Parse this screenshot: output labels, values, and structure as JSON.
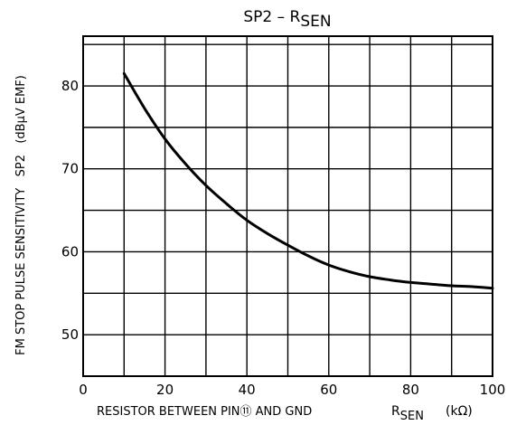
{
  "chart_data": {
    "type": "line",
    "title": "SP2 – R",
    "title_sub": "SEN",
    "xlabel": "RESISTOR BETWEEN PIN⑪ AND GND",
    "xlabel_symbol": "R",
    "xlabel_symbol_sub": "SEN",
    "xlabel_unit": "(kΩ)",
    "ylabel": "FM STOP PULSE SENSITIVITY   SP2   (dBμV EMF)",
    "xlim": [
      0,
      100
    ],
    "ylim": [
      45,
      86
    ],
    "x_ticks": [
      0,
      20,
      40,
      60,
      80,
      100
    ],
    "x_tick_labels": [
      "0",
      "20",
      "40",
      "60",
      "80",
      "100"
    ],
    "y_ticks": [
      50,
      60,
      70,
      80
    ],
    "y_tick_labels": [
      "50",
      "60",
      "70",
      "80"
    ],
    "x_grid_step": 10,
    "y_grid_step": 5,
    "grid": true,
    "series": [
      {
        "x": [
          10,
          15,
          20,
          25,
          30,
          35,
          40,
          45,
          50,
          55,
          60,
          65,
          70,
          75,
          80,
          85,
          90,
          95,
          100
        ],
        "y": [
          81.5,
          77.3,
          73.6,
          70.6,
          68.0,
          65.8,
          63.8,
          62.2,
          60.8,
          59.5,
          58.4,
          57.6,
          57.0,
          56.6,
          56.3,
          56.1,
          55.9,
          55.8,
          55.6
        ]
      }
    ],
    "line_color": "#000000"
  }
}
